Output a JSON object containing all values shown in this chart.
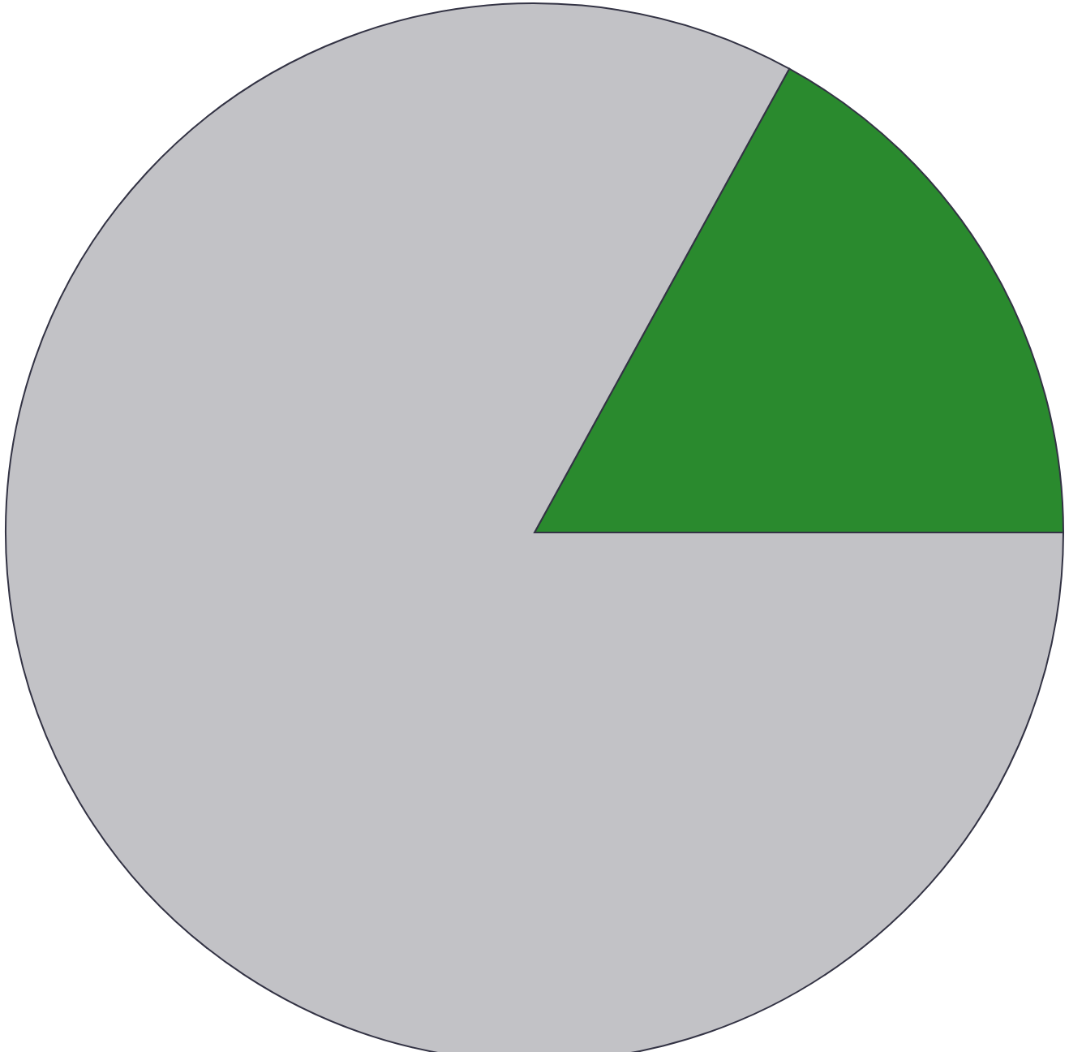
{
  "chart_data": {
    "type": "pie",
    "categories": [
      null,
      null
    ],
    "values": [
      17,
      83
    ],
    "colors": [
      "#2a8a2e",
      "#c2c2c6"
    ],
    "legend": false
  }
}
